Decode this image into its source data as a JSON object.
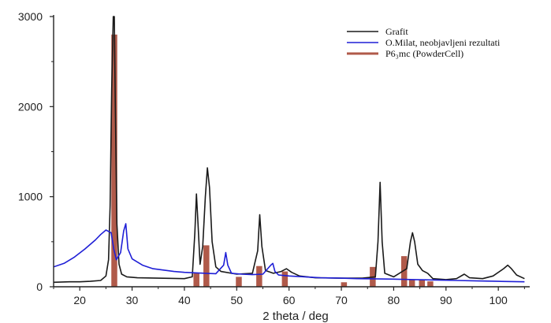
{
  "chart_data": {
    "type": "line",
    "title": "",
    "xlabel": "2 theta / deg",
    "ylabel": "",
    "xlim": [
      15,
      106
    ],
    "ylim": [
      0,
      3000
    ],
    "x_ticks": [
      20,
      30,
      40,
      50,
      60,
      70,
      80,
      90,
      100
    ],
    "y_ticks": [
      0,
      1000,
      2000,
      3000
    ],
    "grid": false,
    "legend_position": "top-right",
    "series": [
      {
        "name": "Grafit",
        "type": "line",
        "color": "#1a1a1a",
        "points": [
          [
            15,
            50
          ],
          [
            18,
            55
          ],
          [
            20,
            55
          ],
          [
            22,
            60
          ],
          [
            24,
            70
          ],
          [
            25,
            120
          ],
          [
            25.5,
            300
          ],
          [
            25.8,
            900
          ],
          [
            26.1,
            2200
          ],
          [
            26.4,
            3000
          ],
          [
            26.6,
            3000
          ],
          [
            26.8,
            2000
          ],
          [
            27.1,
            700
          ],
          [
            27.5,
            250
          ],
          [
            28,
            140
          ],
          [
            29,
            110
          ],
          [
            31,
            100
          ],
          [
            35,
            95
          ],
          [
            40,
            90
          ],
          [
            41.5,
            110
          ],
          [
            42.0,
            600
          ],
          [
            42.3,
            1030
          ],
          [
            42.6,
            700
          ],
          [
            43,
            250
          ],
          [
            43.5,
            450
          ],
          [
            44.0,
            1000
          ],
          [
            44.4,
            1320
          ],
          [
            44.8,
            1100
          ],
          [
            45.3,
            500
          ],
          [
            46,
            220
          ],
          [
            47,
            170
          ],
          [
            50,
            140
          ],
          [
            53,
            150
          ],
          [
            54.0,
            400
          ],
          [
            54.4,
            800
          ],
          [
            54.8,
            450
          ],
          [
            55.5,
            180
          ],
          [
            57,
            150
          ],
          [
            58.5,
            170
          ],
          [
            59.5,
            200
          ],
          [
            60.5,
            160
          ],
          [
            62,
            120
          ],
          [
            65,
            100
          ],
          [
            70,
            95
          ],
          [
            74,
            95
          ],
          [
            76.5,
            110
          ],
          [
            77.0,
            500
          ],
          [
            77.4,
            1160
          ],
          [
            77.8,
            500
          ],
          [
            78.3,
            150
          ],
          [
            80,
            110
          ],
          [
            82.5,
            200
          ],
          [
            83.2,
            500
          ],
          [
            83.6,
            600
          ],
          [
            84.0,
            500
          ],
          [
            84.6,
            250
          ],
          [
            85.5,
            180
          ],
          [
            86.5,
            150
          ],
          [
            87.5,
            90
          ],
          [
            90,
            80
          ],
          [
            92,
            90
          ],
          [
            93.5,
            140
          ],
          [
            94.5,
            100
          ],
          [
            97,
            90
          ],
          [
            99,
            120
          ],
          [
            101,
            200
          ],
          [
            101.8,
            240
          ],
          [
            102.5,
            200
          ],
          [
            103.5,
            130
          ],
          [
            105,
            90
          ]
        ]
      },
      {
        "name": "O.Milat, neobjavljeni rezultati",
        "type": "line",
        "color": "#1f1fd6",
        "points": [
          [
            15,
            220
          ],
          [
            17,
            260
          ],
          [
            19,
            330
          ],
          [
            21,
            420
          ],
          [
            23,
            520
          ],
          [
            24,
            580
          ],
          [
            25,
            630
          ],
          [
            26,
            600
          ],
          [
            26.5,
            420
          ],
          [
            27,
            300
          ],
          [
            27.8,
            380
          ],
          [
            28.4,
            620
          ],
          [
            28.8,
            700
          ],
          [
            29.2,
            420
          ],
          [
            30,
            310
          ],
          [
            32,
            240
          ],
          [
            34,
            200
          ],
          [
            36,
            185
          ],
          [
            38,
            170
          ],
          [
            40,
            160
          ],
          [
            42,
            155
          ],
          [
            44,
            150
          ],
          [
            46,
            145
          ],
          [
            47.5,
            240
          ],
          [
            47.9,
            380
          ],
          [
            48.3,
            240
          ],
          [
            49,
            150
          ],
          [
            51,
            140
          ],
          [
            53,
            135
          ],
          [
            55,
            140
          ],
          [
            56.5,
            240
          ],
          [
            56.9,
            260
          ],
          [
            57.3,
            170
          ],
          [
            58,
            130
          ],
          [
            60,
            120
          ],
          [
            63,
            110
          ],
          [
            66,
            100
          ],
          [
            70,
            95
          ],
          [
            73,
            90
          ],
          [
            76,
            88
          ],
          [
            80,
            85
          ],
          [
            84,
            80
          ],
          [
            88,
            75
          ],
          [
            92,
            70
          ],
          [
            96,
            65
          ],
          [
            100,
            60
          ],
          [
            105,
            55
          ]
        ]
      },
      {
        "name": "P6₃mc (PowderCell)",
        "type": "bar",
        "color": "#b05a4a",
        "points": [
          [
            26.6,
            2800
          ],
          [
            42.3,
            150
          ],
          [
            44.2,
            460
          ],
          [
            50.4,
            110
          ],
          [
            54.3,
            230
          ],
          [
            59.2,
            170
          ],
          [
            70.5,
            50
          ],
          [
            76.0,
            220
          ],
          [
            82.0,
            340
          ],
          [
            83.5,
            80
          ],
          [
            85.4,
            80
          ],
          [
            87.0,
            60
          ]
        ]
      }
    ]
  }
}
